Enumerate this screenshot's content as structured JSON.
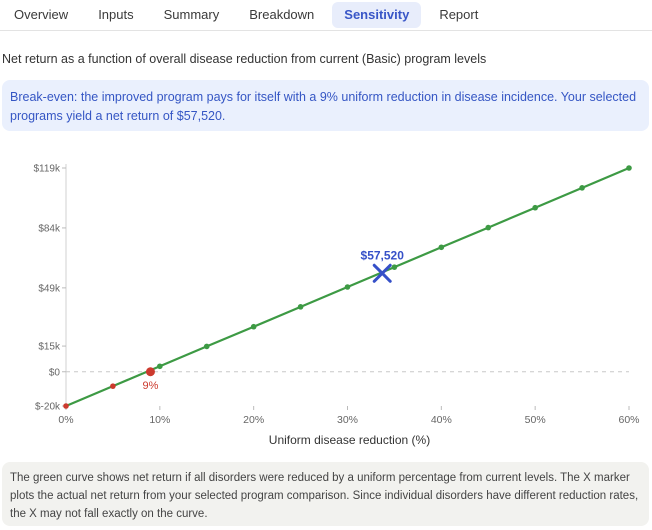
{
  "tabs": [
    {
      "label": "Overview",
      "active": false
    },
    {
      "label": "Inputs",
      "active": false
    },
    {
      "label": "Summary",
      "active": false
    },
    {
      "label": "Breakdown",
      "active": false
    },
    {
      "label": "Sensitivity",
      "active": true
    },
    {
      "label": "Report",
      "active": false
    }
  ],
  "subtitle": "Net return as a function of overall disease reduction from current (Basic) program levels",
  "breakeven_note": "Break-even: the improved program pays for itself with a 9% uniform reduction in disease incidence. Your selected programs yield a net return of $57,520.",
  "footer_note": "The green curve shows net return if all disorders were reduced by a uniform percentage from current levels. The X marker plots the actual net return from your selected program comparison. Since individual disorders have different reduction rates, the X may not fall exactly on the curve.",
  "colors": {
    "line": "#3d9a44",
    "negative_point": "#cc3a2e",
    "marker": "#3550c8",
    "zero_line": "#c8c8c8"
  },
  "chart_data": {
    "type": "line",
    "xlabel": "Uniform disease reduction (%)",
    "ylabel": "",
    "x_ticks": [
      0,
      10,
      20,
      30,
      40,
      50,
      60
    ],
    "x_tick_labels": [
      "0%",
      "10%",
      "20%",
      "30%",
      "40%",
      "50%",
      "60%"
    ],
    "y_ticks": [
      -20000,
      0,
      15000,
      49000,
      84000,
      119000
    ],
    "y_tick_labels": [
      "$-20k",
      "$0",
      "$15k",
      "$49k",
      "$84k",
      "$119k"
    ],
    "xlim": [
      0,
      60
    ],
    "ylim": [
      -20000,
      119000
    ],
    "series": [
      {
        "x": [
          0,
          5,
          10,
          15,
          20,
          25,
          30,
          35,
          40,
          45,
          50,
          55,
          60
        ],
        "y": [
          -20000,
          -8400,
          3200,
          14800,
          26300,
          37900,
          49500,
          61100,
          72700,
          84200,
          95800,
          107400,
          119000
        ]
      }
    ],
    "breakeven": {
      "x": 9,
      "y": 0,
      "label": "9%"
    },
    "marker": {
      "x": 33.7,
      "y": 57520,
      "label": "$57,520"
    }
  }
}
